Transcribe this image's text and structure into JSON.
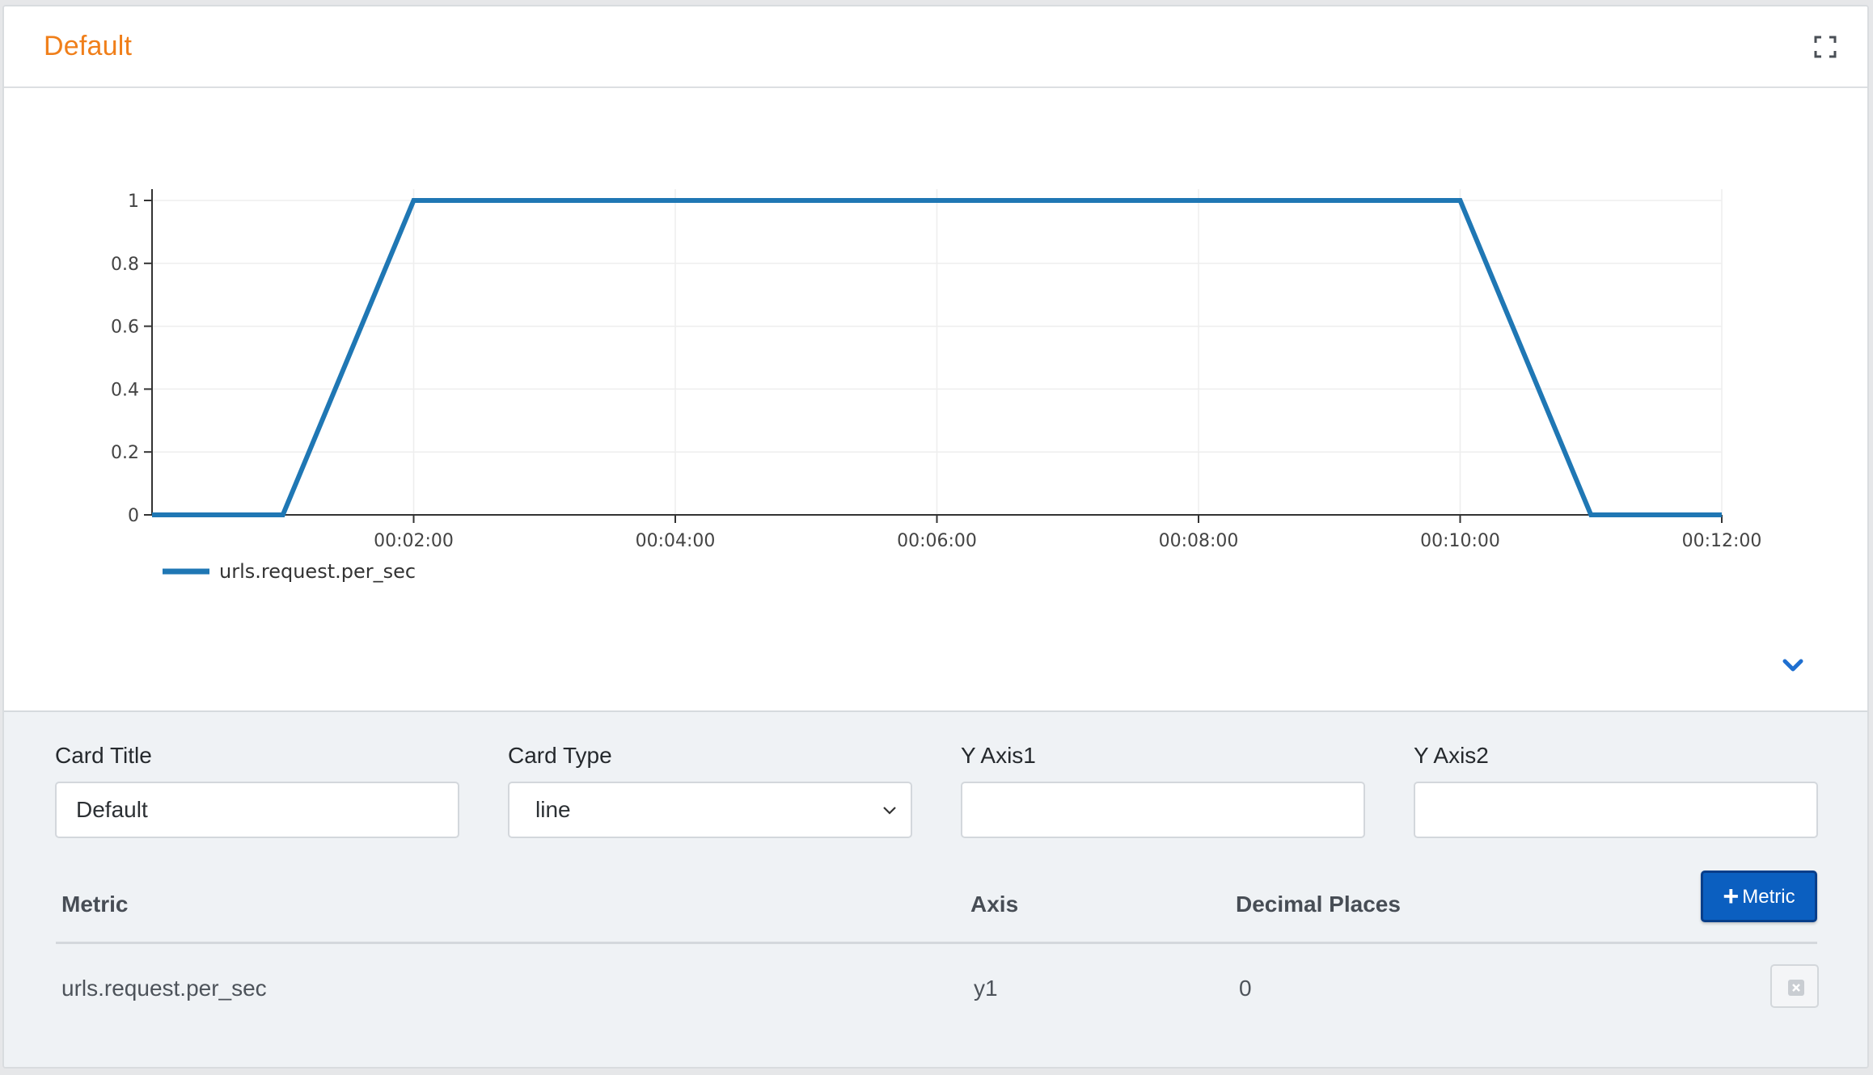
{
  "card": {
    "title": "Default"
  },
  "icons": {
    "fullscreen": "fullscreen-icon",
    "collapse": "chevron-down-icon",
    "remove": "close-icon"
  },
  "colors": {
    "title": "#f07f1a",
    "series": "#1f77b4",
    "primary_button": "#0b5fc0"
  },
  "chart_data": {
    "type": "line",
    "title": "",
    "xlabel": "",
    "ylabel": "",
    "x_ticks": [
      "00:02:00",
      "00:04:00",
      "00:06:00",
      "00:08:00",
      "00:10:00",
      "00:12:00"
    ],
    "y_ticks": [
      "0",
      "0.2",
      "0.4",
      "0.6",
      "0.8",
      "1"
    ],
    "xlim": [
      "00:00:00",
      "00:12:00"
    ],
    "ylim": [
      0,
      1
    ],
    "grid": true,
    "legend": "bottom-left",
    "series": [
      {
        "name": "urls.request.per_sec",
        "color": "#1f77b4",
        "points": [
          {
            "x": "00:00:00",
            "y": 0
          },
          {
            "x": "00:01:00",
            "y": 0
          },
          {
            "x": "00:02:00",
            "y": 1
          },
          {
            "x": "00:10:00",
            "y": 1
          },
          {
            "x": "00:11:00",
            "y": 0
          },
          {
            "x": "00:12:00",
            "y": 0
          }
        ]
      }
    ]
  },
  "settings": {
    "card_title_label": "Card Title",
    "card_title_value": "Default",
    "card_type_label": "Card Type",
    "card_type_value": "line",
    "y_axis1_label": "Y Axis1",
    "y_axis1_value": "",
    "y_axis2_label": "Y Axis2",
    "y_axis2_value": ""
  },
  "metrics_table": {
    "columns": [
      "Metric",
      "Axis",
      "Decimal Places"
    ],
    "add_button_label": "Metric",
    "rows": [
      {
        "metric": "urls.request.per_sec",
        "axis": "y1",
        "decimal_places": "0"
      }
    ]
  }
}
